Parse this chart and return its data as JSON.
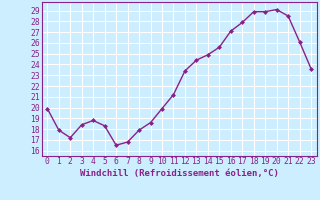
{
  "x": [
    0,
    1,
    2,
    3,
    4,
    5,
    6,
    7,
    8,
    9,
    10,
    11,
    12,
    13,
    14,
    15,
    16,
    17,
    18,
    19,
    20,
    21,
    22,
    23
  ],
  "y": [
    19.9,
    17.9,
    17.2,
    18.4,
    18.8,
    18.3,
    16.5,
    16.8,
    17.9,
    18.6,
    19.9,
    21.2,
    23.4,
    24.4,
    24.9,
    25.6,
    27.1,
    27.9,
    28.9,
    28.9,
    29.1,
    28.5,
    26.1,
    23.6
  ],
  "line_color": "#882288",
  "marker": "D",
  "marker_size": 2,
  "bg_color": "#cceeff",
  "grid_color": "#ffffff",
  "ylabel_ticks": [
    16,
    17,
    18,
    19,
    20,
    21,
    22,
    23,
    24,
    25,
    26,
    27,
    28,
    29
  ],
  "ylim": [
    15.5,
    29.8
  ],
  "xlim": [
    -0.5,
    23.5
  ],
  "xlabel": "Windchill (Refroidissement éolien,°C)",
  "xlabel_fontsize": 6.5,
  "tick_fontsize": 5.8,
  "line_width": 1.0
}
